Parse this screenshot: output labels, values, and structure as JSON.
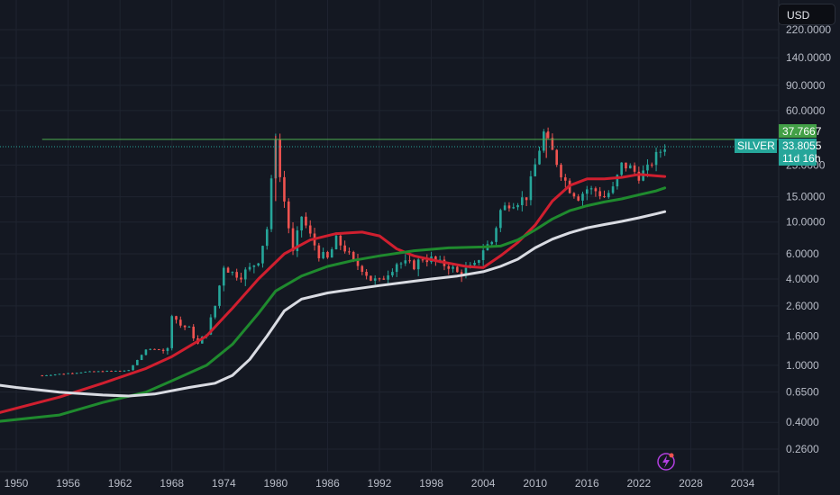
{
  "currency_button": {
    "label": "USD"
  },
  "symbol_tag": {
    "label": "SILVER"
  },
  "price_labels": {
    "resistance": "37.7667",
    "last_price": "33.8055",
    "countdown": "11d 16h"
  },
  "colors": {
    "background": "#141822",
    "grid": "#1f2430",
    "candle_up": "#26a69a",
    "candle_down": "#ef5350",
    "ma_red": "#d01f2f",
    "ma_green": "#1f8a2e",
    "ma_white": "#d9dbe2",
    "resistance_line": "#4caf50",
    "symbol_tag": "#26a69a"
  },
  "icons": {
    "bottom_badge": "lightning-bolt-icon"
  },
  "chart_data": {
    "type": "candlestick",
    "scale": "log",
    "ylim": [
      0.2,
      300
    ],
    "xlim": [
      1947,
      2039
    ],
    "y_ticks": [
      "220.0000",
      "140.0000",
      "90.0000",
      "60.0000",
      "25.0000",
      "15.0000",
      "10.0000",
      "6.0000",
      "4.0000",
      "2.6000",
      "1.6000",
      "1.0000",
      "0.6500",
      "0.4000",
      "0.2600"
    ],
    "y_tick_values": [
      220,
      140,
      90,
      60,
      25,
      15,
      10,
      6,
      4,
      2.6,
      1.6,
      1.0,
      0.65,
      0.4,
      0.26
    ],
    "x_ticks": [
      "1950",
      "1956",
      "1962",
      "1968",
      "1974",
      "1980",
      "1986",
      "1992",
      "1998",
      "2004",
      "2010",
      "2016",
      "2022",
      "2028",
      "2034"
    ],
    "x_tick_values": [
      1950,
      1956,
      1962,
      1968,
      1974,
      1980,
      1986,
      1992,
      1998,
      2004,
      2010,
      2016,
      2022,
      2028,
      2034
    ],
    "resistance_level": 37.7667,
    "last_price": 33.8055,
    "price_points": [
      [
        1953,
        0.85
      ],
      [
        1958,
        0.9
      ],
      [
        1963,
        0.92
      ],
      [
        1965,
        1.29
      ],
      [
        1967.5,
        1.29
      ],
      [
        1968,
        2.3
      ],
      [
        1969,
        1.9
      ],
      [
        1970,
        1.8
      ],
      [
        1971,
        1.4
      ],
      [
        1972,
        1.7
      ],
      [
        1973,
        2.6
      ],
      [
        1974,
        5.0
      ],
      [
        1975,
        4.4
      ],
      [
        1976,
        4.3
      ],
      [
        1977,
        4.7
      ],
      [
        1978,
        5.5
      ],
      [
        1979,
        9.0
      ],
      [
        1980,
        40.0
      ],
      [
        1980.6,
        18.0
      ],
      [
        1981,
        14.0
      ],
      [
        1982,
        6.0
      ],
      [
        1983,
        11.0
      ],
      [
        1984,
        8.0
      ],
      [
        1985,
        6.0
      ],
      [
        1986,
        5.5
      ],
      [
        1987,
        7.5
      ],
      [
        1988,
        6.5
      ],
      [
        1989,
        5.2
      ],
      [
        1990,
        4.8
      ],
      [
        1991,
        4.0
      ],
      [
        1992,
        3.8
      ],
      [
        1993,
        4.5
      ],
      [
        1994,
        5.2
      ],
      [
        1995,
        5.1
      ],
      [
        1996,
        5.0
      ],
      [
        1997,
        5.6
      ],
      [
        1998,
        5.5
      ],
      [
        1999,
        5.1
      ],
      [
        2000,
        5.0
      ],
      [
        2001,
        4.4
      ],
      [
        2002,
        4.6
      ],
      [
        2003,
        4.9
      ],
      [
        2004,
        6.5
      ],
      [
        2005,
        7.3
      ],
      [
        2006,
        12.0
      ],
      [
        2007,
        13.5
      ],
      [
        2008,
        14.0
      ],
      [
        2009,
        15.0
      ],
      [
        2010,
        25.0
      ],
      [
        2011,
        42.0
      ],
      [
        2012,
        31.0
      ],
      [
        2013,
        22.0
      ],
      [
        2014,
        17.0
      ],
      [
        2015,
        15.0
      ],
      [
        2016,
        17.0
      ],
      [
        2017,
        16.5
      ],
      [
        2018,
        15.0
      ],
      [
        2019,
        17.0
      ],
      [
        2020,
        25.0
      ],
      [
        2021,
        24.0
      ],
      [
        2022,
        21.0
      ],
      [
        2023,
        23.5
      ],
      [
        2024,
        29.0
      ],
      [
        2025,
        33.8
      ]
    ],
    "moving_averages": [
      {
        "color": "#d01f2f",
        "points": [
          [
            1947,
            0.45
          ],
          [
            1955,
            0.6
          ],
          [
            1960,
            0.75
          ],
          [
            1965,
            0.95
          ],
          [
            1968,
            1.15
          ],
          [
            1972,
            1.6
          ],
          [
            1975,
            2.5
          ],
          [
            1978,
            4.0
          ],
          [
            1981,
            6.0
          ],
          [
            1984,
            7.5
          ],
          [
            1987,
            8.3
          ],
          [
            1990,
            8.5
          ],
          [
            1992,
            8.0
          ],
          [
            1994,
            6.5
          ],
          [
            1996,
            5.8
          ],
          [
            1999,
            5.3
          ],
          [
            2002,
            4.9
          ],
          [
            2004,
            4.8
          ],
          [
            2006,
            5.8
          ],
          [
            2008,
            7.2
          ],
          [
            2010,
            9.5
          ],
          [
            2012,
            14.0
          ],
          [
            2014,
            18.0
          ],
          [
            2016,
            20.0
          ],
          [
            2018,
            20.0
          ],
          [
            2020,
            20.5
          ],
          [
            2022,
            21.5
          ],
          [
            2024,
            21.0
          ],
          [
            2025,
            20.8
          ]
        ]
      },
      {
        "color": "#1f8a2e",
        "points": [
          [
            1947,
            0.4
          ],
          [
            1955,
            0.45
          ],
          [
            1960,
            0.55
          ],
          [
            1965,
            0.65
          ],
          [
            1968,
            0.78
          ],
          [
            1972,
            1.0
          ],
          [
            1975,
            1.4
          ],
          [
            1978,
            2.3
          ],
          [
            1980,
            3.3
          ],
          [
            1983,
            4.2
          ],
          [
            1986,
            4.9
          ],
          [
            1989,
            5.4
          ],
          [
            1992,
            5.8
          ],
          [
            1996,
            6.3
          ],
          [
            2000,
            6.6
          ],
          [
            2004,
            6.7
          ],
          [
            2006,
            6.8
          ],
          [
            2008,
            7.5
          ],
          [
            2010,
            8.8
          ],
          [
            2012,
            10.5
          ],
          [
            2014,
            12.0
          ],
          [
            2016,
            13.0
          ],
          [
            2018,
            13.8
          ],
          [
            2020,
            14.5
          ],
          [
            2022,
            15.5
          ],
          [
            2024,
            16.5
          ],
          [
            2025,
            17.3
          ]
        ]
      },
      {
        "color": "#d9dbe2",
        "points": [
          [
            1947,
            0.74
          ],
          [
            1950,
            0.7
          ],
          [
            1955,
            0.65
          ],
          [
            1960,
            0.62
          ],
          [
            1963,
            0.61
          ],
          [
            1966,
            0.63
          ],
          [
            1970,
            0.7
          ],
          [
            1973,
            0.75
          ],
          [
            1975,
            0.85
          ],
          [
            1977,
            1.1
          ],
          [
            1979,
            1.6
          ],
          [
            1981,
            2.4
          ],
          [
            1983,
            2.9
          ],
          [
            1986,
            3.2
          ],
          [
            1989,
            3.4
          ],
          [
            1992,
            3.6
          ],
          [
            1995,
            3.8
          ],
          [
            1998,
            4.0
          ],
          [
            2001,
            4.2
          ],
          [
            2004,
            4.5
          ],
          [
            2006,
            4.9
          ],
          [
            2008,
            5.5
          ],
          [
            2010,
            6.6
          ],
          [
            2012,
            7.6
          ],
          [
            2014,
            8.4
          ],
          [
            2016,
            9.1
          ],
          [
            2018,
            9.6
          ],
          [
            2020,
            10.1
          ],
          [
            2022,
            10.7
          ],
          [
            2024,
            11.4
          ],
          [
            2025,
            11.8
          ]
        ]
      }
    ]
  }
}
